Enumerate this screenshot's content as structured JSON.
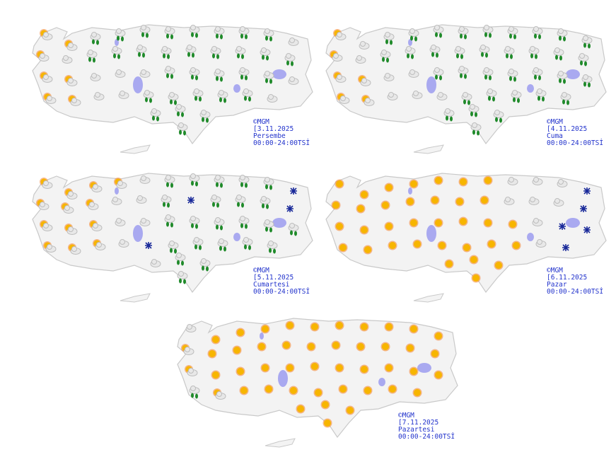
{
  "colors": {
    "land": "#f3f3f3",
    "border": "#c9c9c9",
    "lake": "#a9a9f0",
    "stamp": "#2233cc",
    "sun": "#f7b500",
    "rain": "#1f8a2a",
    "snow": "#1a2a9a",
    "cloud": "#bdbdbd"
  },
  "icon_legend": {
    "s": "sunny-icon",
    "pc": "partly-cloudy-icon",
    "c": "cloudy-icon",
    "r": "rain-icon",
    "sn": "snow-icon"
  },
  "maps": [
    {
      "copyright": "©MGM",
      "date": "[3.11.2025",
      "day": "Persembe",
      "period": "00:00-24:00TSİ",
      "icons": [
        "pc",
        "pc",
        "r",
        "r",
        "r",
        "r",
        "r",
        "r",
        "r",
        "r",
        "c",
        "pc",
        "c",
        "r",
        "r",
        "r",
        "r",
        "r",
        "r",
        "r",
        "r",
        "r",
        "pc",
        "pc",
        "c",
        "c",
        "c",
        "r",
        "r",
        "r",
        "r",
        "r",
        "c",
        "pc",
        "pc",
        "c",
        "c",
        "r",
        "r",
        "r",
        "r",
        "r",
        "c",
        "r",
        "r",
        "r",
        "r"
      ]
    },
    {
      "copyright": "©MGM",
      "date": "[4.11.2025",
      "day": "Cuma",
      "period": "00:00-24:00TSİ",
      "icons": [
        "pc",
        "c",
        "r",
        "r",
        "r",
        "r",
        "r",
        "r",
        "r",
        "r",
        "r",
        "pc",
        "c",
        "r",
        "r",
        "r",
        "r",
        "r",
        "r",
        "r",
        "r",
        "r",
        "pc",
        "pc",
        "c",
        "c",
        "r",
        "r",
        "r",
        "r",
        "r",
        "r",
        "r",
        "pc",
        "pc",
        "c",
        "c",
        "c",
        "r",
        "r",
        "r",
        "r",
        "r",
        "r",
        "r",
        "r",
        "r"
      ]
    },
    {
      "copyright": "©MGM",
      "date": "[5.11.2025",
      "day": "Cumartesi",
      "period": "00:00-24:00TSİ",
      "icons": [
        "pc",
        "pc",
        "pc",
        "pc",
        "c",
        "r",
        "r",
        "r",
        "r",
        "r",
        "sn",
        "pc",
        "pc",
        "pc",
        "c",
        "c",
        "r",
        "sn",
        "r",
        "r",
        "r",
        "sn",
        "pc",
        "pc",
        "pc",
        "c",
        "c",
        "r",
        "r",
        "r",
        "r",
        "r",
        "r",
        "pc",
        "pc",
        "pc",
        "c",
        "sn",
        "r",
        "r",
        "r",
        "r",
        "r",
        "c",
        "r",
        "r",
        "r"
      ]
    },
    {
      "copyright": "©MGM",
      "date": "[6.11.2025",
      "day": "Pazar",
      "period": "00:00-24:00TSİ",
      "icons": [
        "s",
        "s",
        "s",
        "s",
        "s",
        "s",
        "s",
        "c",
        "c",
        "c",
        "sn",
        "s",
        "s",
        "s",
        "s",
        "s",
        "s",
        "s",
        "c",
        "c",
        "c",
        "sn",
        "s",
        "s",
        "s",
        "s",
        "s",
        "s",
        "s",
        "s",
        "c",
        "sn",
        "sn",
        "s",
        "s",
        "s",
        "s",
        "s",
        "s",
        "s",
        "s",
        "c",
        "sn",
        "s",
        "s",
        "s",
        "s"
      ]
    },
    {
      "copyright": "©MGM",
      "date": "[7.11.2025",
      "day": "Pazartesi",
      "period": "00:00-24:00TSİ",
      "icons": [
        "c",
        "s",
        "s",
        "s",
        "s",
        "s",
        "s",
        "s",
        "s",
        "s",
        "s",
        "pc",
        "s",
        "s",
        "s",
        "s",
        "s",
        "s",
        "s",
        "s",
        "s",
        "s",
        "pc",
        "s",
        "s",
        "s",
        "s",
        "s",
        "s",
        "s",
        "s",
        "s",
        "s",
        "r",
        "pc",
        "s",
        "s",
        "s",
        "s",
        "s",
        "s",
        "s",
        "s",
        "s",
        "s",
        "s",
        "s"
      ]
    }
  ]
}
